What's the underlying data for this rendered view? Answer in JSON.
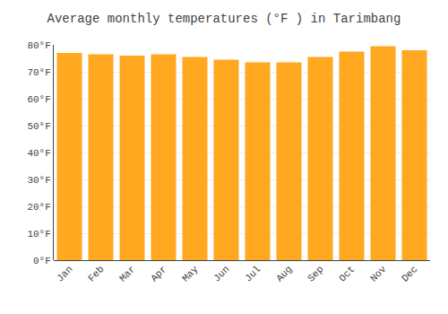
{
  "chart_data": {
    "type": "bar",
    "title": "Average monthly temperatures (°F ) in Tarimbang",
    "categories": [
      "Jan",
      "Feb",
      "Mar",
      "Apr",
      "May",
      "Jun",
      "Jul",
      "Aug",
      "Sep",
      "Oct",
      "Nov",
      "Dec"
    ],
    "values": [
      77.0,
      76.5,
      76.0,
      76.5,
      75.5,
      74.5,
      73.5,
      73.5,
      75.5,
      77.5,
      79.5,
      78.0
    ],
    "color": "#FFA820",
    "ylim": [
      0,
      80
    ],
    "yticks": [
      {
        "value": 0,
        "label": "0°F"
      },
      {
        "value": 10,
        "label": "10°F"
      },
      {
        "value": 20,
        "label": "20°F"
      },
      {
        "value": 30,
        "label": "30°F"
      },
      {
        "value": 40,
        "label": "40°F"
      },
      {
        "value": 50,
        "label": "50°F"
      },
      {
        "value": 60,
        "label": "60°F"
      },
      {
        "value": 70,
        "label": "70°F"
      },
      {
        "value": 80,
        "label": "80°F"
      }
    ],
    "grid": true
  }
}
